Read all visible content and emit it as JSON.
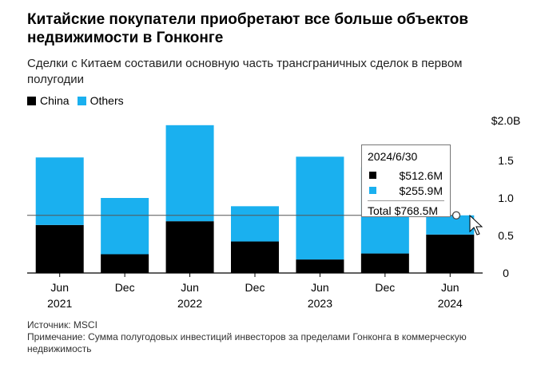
{
  "header": {
    "title": "Китайские покупатели приобретают все больше объектов недвижимости в Гонконге",
    "subtitle": "Сделки с Китаем составили основную часть трансграничных сделок в первом полугодии"
  },
  "legend": {
    "items": [
      {
        "label": "China",
        "color": "#000000"
      },
      {
        "label": "Others",
        "color": "#1ab0ef"
      }
    ]
  },
  "chart_data": {
    "type": "bar",
    "stacked": true,
    "categories": [
      "Jun 2021",
      "Dec 2021",
      "Jun 2022",
      "Dec 2022",
      "Jun 2023",
      "Dec 2023",
      "Jun 2024"
    ],
    "x_labels": [
      {
        "top": "Jun",
        "bottom": "2021"
      },
      {
        "top": "Dec",
        "bottom": ""
      },
      {
        "top": "Jun",
        "bottom": "2022"
      },
      {
        "top": "Dec",
        "bottom": ""
      },
      {
        "top": "Jun",
        "bottom": "2023"
      },
      {
        "top": "Dec",
        "bottom": ""
      },
      {
        "top": "Jun",
        "bottom": "2024"
      }
    ],
    "series": [
      {
        "name": "China",
        "color": "#000000",
        "values": [
          0.64,
          0.25,
          0.69,
          0.42,
          0.18,
          0.26,
          0.5126
        ]
      },
      {
        "name": "Others",
        "color": "#1ab0ef",
        "values": [
          0.9,
          0.75,
          1.28,
          0.47,
          1.37,
          1.15,
          0.2559
        ]
      }
    ],
    "yticks": [
      {
        "value": 0,
        "label": "0"
      },
      {
        "value": 0.5,
        "label": "0.5"
      },
      {
        "value": 1.0,
        "label": "1.0"
      },
      {
        "value": 1.5,
        "label": "1.5"
      },
      {
        "value": 2.0,
        "label": "$2.0B"
      }
    ],
    "ylim": [
      0,
      2.0
    ],
    "ylabel": "",
    "xlabel": "",
    "grid": false,
    "legend_position": "top-left",
    "reference_value": 0.7685,
    "tooltip": {
      "date": "2024/6/30",
      "rows": [
        {
          "color": "#000000",
          "value": "$512.6M"
        },
        {
          "color": "#1ab0ef",
          "value": "$255.9M"
        }
      ],
      "total_label": "Total",
      "total_value": "$768.5M"
    }
  },
  "footer": {
    "source": "Источник: MSCI",
    "note": "Примечание: Сумма полугодовых инвестиций инвесторов за пределами Гонконга в коммерческую недвижимость"
  }
}
